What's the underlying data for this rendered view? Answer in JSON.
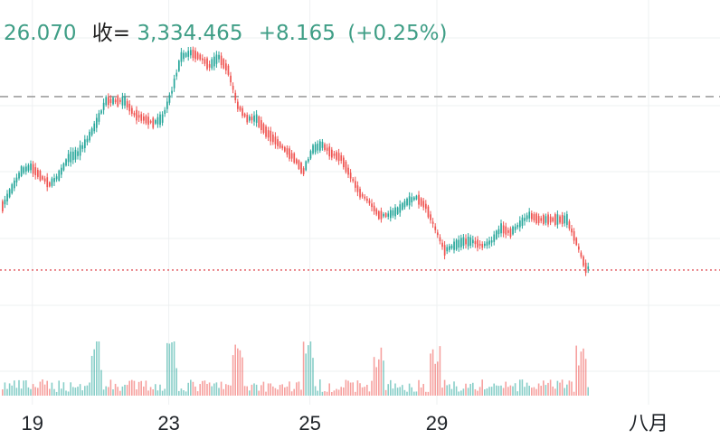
{
  "header": {
    "low_value": "26.070",
    "close_label": "收=",
    "close_value": "3,334.465",
    "change": "+8.165",
    "change_pct": "(+0.25%)"
  },
  "colors": {
    "up": "#26a69a",
    "down": "#ef5350",
    "header_value": "#3f9e86",
    "header_label": "#222222",
    "grid": "#eef0f2",
    "prev_close_line": "#9e9e9e",
    "last_price_line": "#e0535b"
  },
  "chart_data": {
    "type": "candlestick",
    "x_ticks": [
      "19",
      "23",
      "25",
      "29",
      "八月"
    ],
    "reference_lines": {
      "prev_close_y_fraction": 0.22,
      "last_price_y_fraction": 0.615
    },
    "grid": true,
    "price_trend": [
      [
        0,
        0.47
      ],
      [
        4,
        0.43
      ],
      [
        8,
        0.39
      ],
      [
        12,
        0.38
      ],
      [
        16,
        0.4
      ],
      [
        20,
        0.42
      ],
      [
        24,
        0.4
      ],
      [
        28,
        0.36
      ],
      [
        32,
        0.35
      ],
      [
        36,
        0.32
      ],
      [
        40,
        0.28
      ],
      [
        44,
        0.23
      ],
      [
        48,
        0.23
      ],
      [
        52,
        0.23
      ],
      [
        56,
        0.26
      ],
      [
        60,
        0.27
      ],
      [
        64,
        0.28
      ],
      [
        68,
        0.27
      ],
      [
        72,
        0.21
      ],
      [
        76,
        0.13
      ],
      [
        80,
        0.12
      ],
      [
        84,
        0.13
      ],
      [
        88,
        0.15
      ],
      [
        92,
        0.13
      ],
      [
        96,
        0.16
      ],
      [
        100,
        0.24
      ],
      [
        104,
        0.27
      ],
      [
        108,
        0.27
      ],
      [
        112,
        0.3
      ],
      [
        116,
        0.32
      ],
      [
        120,
        0.34
      ],
      [
        124,
        0.36
      ],
      [
        128,
        0.39
      ],
      [
        132,
        0.34
      ],
      [
        136,
        0.33
      ],
      [
        140,
        0.35
      ],
      [
        144,
        0.36
      ],
      [
        148,
        0.4
      ],
      [
        152,
        0.44
      ],
      [
        156,
        0.46
      ],
      [
        160,
        0.49
      ],
      [
        164,
        0.49
      ],
      [
        168,
        0.48
      ],
      [
        172,
        0.46
      ],
      [
        176,
        0.45
      ],
      [
        180,
        0.47
      ],
      [
        184,
        0.52
      ],
      [
        188,
        0.57
      ],
      [
        192,
        0.56
      ],
      [
        196,
        0.55
      ],
      [
        200,
        0.55
      ],
      [
        204,
        0.56
      ],
      [
        208,
        0.55
      ],
      [
        212,
        0.52
      ],
      [
        216,
        0.53
      ],
      [
        220,
        0.51
      ],
      [
        224,
        0.49
      ],
      [
        228,
        0.5
      ],
      [
        232,
        0.5
      ],
      [
        236,
        0.5
      ],
      [
        240,
        0.5
      ],
      [
        244,
        0.55
      ],
      [
        248,
        0.61
      ],
      [
        249,
        0.61
      ]
    ],
    "tick_index": [
      13,
      71,
      131,
      185,
      275
    ],
    "total_slots": 300
  }
}
